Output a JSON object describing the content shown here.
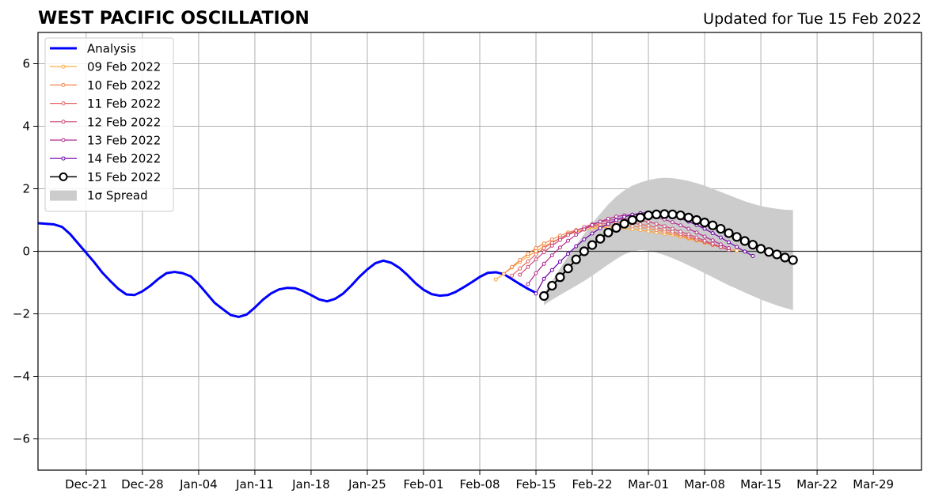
{
  "chart_data": {
    "type": "line",
    "title": "WEST PACIFIC OSCILLATION",
    "subtitle": "Updated for Tue 15 Feb 2022",
    "xlabel": "",
    "ylabel": "",
    "xlim": [
      "2021-12-15",
      "2022-04-04"
    ],
    "ylim": [
      -7,
      7
    ],
    "grid": true,
    "legend_position": "top-left",
    "x_ticks": [
      "Dec-21",
      "Dec-28",
      "Jan-04",
      "Jan-11",
      "Jan-18",
      "Jan-25",
      "Feb-01",
      "Feb-08",
      "Feb-15",
      "Feb-22",
      "Mar-01",
      "Mar-08",
      "Mar-15",
      "Mar-22",
      "Mar-29"
    ],
    "y_ticks": [
      6,
      4,
      2,
      0,
      -2,
      -4,
      -6
    ],
    "y_tick_labels": [
      "6",
      "4",
      "2",
      "0",
      "−2",
      "−4",
      "−6"
    ],
    "analysis": {
      "name": "Analysis",
      "color": "#0000ff",
      "x": [
        "2021-12-15",
        "2021-12-16",
        "2021-12-17",
        "2021-12-18",
        "2021-12-19",
        "2021-12-20",
        "2021-12-21",
        "2021-12-22",
        "2021-12-23",
        "2021-12-24",
        "2021-12-25",
        "2021-12-26",
        "2021-12-27",
        "2021-12-28",
        "2021-12-29",
        "2021-12-30",
        "2021-12-31",
        "2022-01-01",
        "2022-01-02",
        "2022-01-03",
        "2022-01-04",
        "2022-01-05",
        "2022-01-06",
        "2022-01-07",
        "2022-01-08",
        "2022-01-09",
        "2022-01-10",
        "2022-01-11",
        "2022-01-12",
        "2022-01-13",
        "2022-01-14",
        "2022-01-15",
        "2022-01-16",
        "2022-01-17",
        "2022-01-18",
        "2022-01-19",
        "2022-01-20",
        "2022-01-21",
        "2022-01-22",
        "2022-01-23",
        "2022-01-24",
        "2022-01-25",
        "2022-01-26",
        "2022-01-27",
        "2022-01-28",
        "2022-01-29",
        "2022-01-30",
        "2022-01-31",
        "2022-02-01",
        "2022-02-02",
        "2022-02-03",
        "2022-02-04",
        "2022-02-05",
        "2022-02-06",
        "2022-02-07",
        "2022-02-08",
        "2022-02-09",
        "2022-02-10",
        "2022-02-11",
        "2022-02-12",
        "2022-02-13",
        "2022-02-14",
        "2022-02-15"
      ],
      "values": [
        0.9,
        0.88,
        0.86,
        0.78,
        0.55,
        0.25,
        -0.05,
        -0.35,
        -0.68,
        -0.95,
        -1.2,
        -1.38,
        -1.4,
        -1.28,
        -1.1,
        -0.88,
        -0.7,
        -0.66,
        -0.7,
        -0.8,
        -1.05,
        -1.35,
        -1.65,
        -1.85,
        -2.04,
        -2.1,
        -2.02,
        -1.8,
        -1.55,
        -1.35,
        -1.22,
        -1.17,
        -1.18,
        -1.27,
        -1.4,
        -1.54,
        -1.6,
        -1.52,
        -1.35,
        -1.1,
        -0.82,
        -0.58,
        -0.38,
        -0.3,
        -0.37,
        -0.53,
        -0.76,
        -1.02,
        -1.23,
        -1.37,
        -1.42,
        -1.4,
        -1.3,
        -1.15,
        -0.99,
        -0.82,
        -0.69,
        -0.67,
        -0.73,
        -0.89,
        -1.05,
        -1.2,
        -1.33
      ]
    },
    "forecasts": [
      {
        "name": "09 Feb 2022",
        "color": "#fca636",
        "start": "2022-02-10",
        "values": [
          -0.9,
          -0.72,
          -0.52,
          -0.34,
          -0.16,
          0.0,
          0.15,
          0.29,
          0.42,
          0.53,
          0.62,
          0.69,
          0.73,
          0.76,
          0.77,
          0.76,
          0.74,
          0.71,
          0.68,
          0.64,
          0.6,
          0.56,
          0.52,
          0.46,
          0.4,
          0.34,
          0.27,
          0.2,
          0.13,
          0.07,
          0.02
        ]
      },
      {
        "name": "10 Feb 2022",
        "color": "#f1844b",
        "start": "2022-02-11",
        "values": [
          -0.72,
          -0.5,
          -0.28,
          -0.08,
          0.1,
          0.25,
          0.38,
          0.5,
          0.6,
          0.68,
          0.74,
          0.79,
          0.82,
          0.84,
          0.84,
          0.83,
          0.8,
          0.77,
          0.73,
          0.68,
          0.63,
          0.57,
          0.5,
          0.43,
          0.36,
          0.28,
          0.2,
          0.13,
          0.06
        ]
      },
      {
        "name": "11 Feb 2022",
        "color": "#e16462",
        "start": "2022-02-12",
        "values": [
          -0.78,
          -0.55,
          -0.32,
          -0.1,
          0.1,
          0.27,
          0.42,
          0.55,
          0.66,
          0.75,
          0.82,
          0.87,
          0.9,
          0.92,
          0.92,
          0.9,
          0.86,
          0.82,
          0.76,
          0.7,
          0.63,
          0.55,
          0.47,
          0.38,
          0.3,
          0.21,
          0.13,
          0.05
        ]
      },
      {
        "name": "12 Feb 2022",
        "color": "#cc4778",
        "start": "2022-02-13",
        "values": [
          -0.75,
          -0.5,
          -0.26,
          -0.03,
          0.18,
          0.36,
          0.52,
          0.66,
          0.77,
          0.87,
          0.94,
          0.99,
          1.02,
          1.03,
          1.02,
          0.99,
          0.94,
          0.88,
          0.8,
          0.72,
          0.63,
          0.54,
          0.44,
          0.34,
          0.24,
          0.14,
          0.04
        ]
      },
      {
        "name": "13 Feb 2022",
        "color": "#b12a90",
        "start": "2022-02-14",
        "values": [
          -1.05,
          -0.7,
          -0.4,
          -0.13,
          0.12,
          0.34,
          0.53,
          0.7,
          0.84,
          0.95,
          1.04,
          1.11,
          1.15,
          1.17,
          1.17,
          1.14,
          1.09,
          1.02,
          0.93,
          0.83,
          0.72,
          0.6,
          0.47,
          0.35,
          0.22,
          0.1
        ]
      },
      {
        "name": "14 Feb 2022",
        "color": "#6a00a8",
        "start": "2022-02-15",
        "values": [
          -1.35,
          -0.88,
          -0.6,
          -0.33,
          -0.08,
          0.16,
          0.38,
          0.57,
          0.74,
          0.88,
          1.0,
          1.1,
          1.17,
          1.22,
          1.24,
          1.23,
          1.19,
          1.13,
          1.05,
          0.95,
          0.84,
          0.72,
          0.58,
          0.44,
          0.29,
          0.14,
          -0.01,
          -0.15
        ]
      },
      {
        "name": "15 Feb 2022",
        "color": "#000000",
        "start": "2022-02-16",
        "values": [
          -1.43,
          -1.1,
          -0.83,
          -0.55,
          -0.26,
          0.0,
          0.2,
          0.4,
          0.6,
          0.75,
          0.88,
          1.0,
          1.08,
          1.15,
          1.18,
          1.19,
          1.18,
          1.15,
          1.08,
          1.0,
          0.92,
          0.83,
          0.72,
          0.58,
          0.46,
          0.33,
          0.21,
          0.08,
          -0.02,
          -0.1,
          -0.2,
          -0.28
        ]
      }
    ],
    "spread": {
      "name": "1σ Spread",
      "color": "#cccccc",
      "start": "2022-02-16",
      "upper": [
        -1.35,
        -0.95,
        -0.55,
        -0.15,
        0.2,
        0.55,
        0.9,
        1.2,
        1.5,
        1.75,
        1.95,
        2.1,
        2.2,
        2.28,
        2.33,
        2.35,
        2.34,
        2.3,
        2.25,
        2.18,
        2.1,
        2.0,
        1.9,
        1.8,
        1.7,
        1.6,
        1.52,
        1.45,
        1.4,
        1.36,
        1.33,
        1.32
      ],
      "lower": [
        -1.72,
        -1.55,
        -1.4,
        -1.25,
        -1.1,
        -0.95,
        -0.78,
        -0.6,
        -0.42,
        -0.25,
        -0.1,
        0.0,
        0.04,
        0.02,
        -0.04,
        -0.12,
        -0.22,
        -0.33,
        -0.45,
        -0.57,
        -0.7,
        -0.83,
        -0.96,
        -1.09,
        -1.2,
        -1.32,
        -1.43,
        -1.54,
        -1.64,
        -1.73,
        -1.81,
        -1.88
      ]
    }
  }
}
